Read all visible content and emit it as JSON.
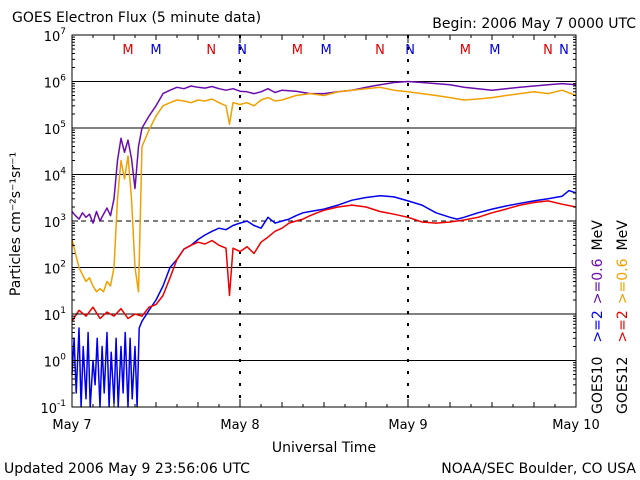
{
  "chart_data": {
    "type": "line",
    "title": "GOES Electron Flux (5 minute data)",
    "begin_label": "Begin: 2006 May 7 0000 UTC",
    "xlabel": "Universal Time",
    "ylabel": "Particles cm⁻²s⁻¹sr⁻¹",
    "yscale": "log",
    "ylim": [
      0.1,
      10000000
    ],
    "y_ticks": [
      {
        "value": 0.1,
        "base": "10",
        "exp": "-1"
      },
      {
        "value": 1,
        "base": "10",
        "exp": "0"
      },
      {
        "value": 10,
        "base": "10",
        "exp": "1"
      },
      {
        "value": 100,
        "base": "10",
        "exp": "2"
      },
      {
        "value": 1000,
        "base": "10",
        "exp": "3"
      },
      {
        "value": 10000,
        "base": "10",
        "exp": "4"
      },
      {
        "value": 100000,
        "base": "10",
        "exp": "5"
      },
      {
        "value": 1000000,
        "base": "10",
        "exp": "6"
      },
      {
        "value": 10000000,
        "base": "10",
        "exp": "7"
      }
    ],
    "xlim": [
      0,
      72
    ],
    "x_ticks": [
      {
        "hour": 0,
        "label": "May 7"
      },
      {
        "hour": 24,
        "label": "May 8"
      },
      {
        "hour": 48,
        "label": "May 9"
      },
      {
        "hour": 72,
        "label": "May 10"
      }
    ],
    "markers": [
      {
        "hour": 8.0,
        "label": "M",
        "color": "#dd0000"
      },
      {
        "hour": 12.0,
        "label": "M",
        "color": "#0000dd"
      },
      {
        "hour": 19.9,
        "label": "N",
        "color": "#dd0000"
      },
      {
        "hour": 24.3,
        "label": "N",
        "color": "#0000dd"
      },
      {
        "hour": 32.2,
        "label": "M",
        "color": "#dd0000"
      },
      {
        "hour": 36.3,
        "label": "M",
        "color": "#0000dd"
      },
      {
        "hour": 44.0,
        "label": "N",
        "color": "#dd0000"
      },
      {
        "hour": 48.3,
        "label": "N",
        "color": "#0000dd"
      },
      {
        "hour": 56.2,
        "label": "M",
        "color": "#dd0000"
      },
      {
        "hour": 60.4,
        "label": "M",
        "color": "#0000dd"
      },
      {
        "hour": 68.0,
        "label": "N",
        "color": "#dd0000"
      },
      {
        "hour": 72.3,
        "label": "N",
        "color": "#0000dd"
      }
    ],
    "dashed_reference": {
      "y": 1000
    },
    "legend": {
      "goes10": "GOES10",
      "goes12": "GOES12",
      "goes10_ge06": ">=0.6",
      "goes10_ge2": ">=2",
      "goes12_ge06": ">=0.6",
      "goes12_ge2": ">=2",
      "unit": "MeV"
    },
    "series": [
      {
        "name": "GOES10 >=0.6 MeV",
        "color": "#6a0dad",
        "points": [
          [
            0,
            1600
          ],
          [
            0.5,
            1300
          ],
          [
            1,
            1100
          ],
          [
            1.5,
            1500
          ],
          [
            2,
            1200
          ],
          [
            2.5,
            1400
          ],
          [
            3,
            900
          ],
          [
            3.5,
            1600
          ],
          [
            4,
            1000
          ],
          [
            4.5,
            1400
          ],
          [
            5,
            1900
          ],
          [
            5.5,
            1300
          ],
          [
            6,
            3000
          ],
          [
            6.5,
            20000
          ],
          [
            7,
            60000
          ],
          [
            7.5,
            30000
          ],
          [
            8,
            55000
          ],
          [
            8.5,
            22000
          ],
          [
            9,
            5000
          ],
          [
            9.5,
            40000
          ],
          [
            10,
            100000
          ],
          [
            11,
            180000
          ],
          [
            12,
            300000
          ],
          [
            13,
            550000
          ],
          [
            14,
            650000
          ],
          [
            15,
            750000
          ],
          [
            16,
            700000
          ],
          [
            17,
            800000
          ],
          [
            18,
            750000
          ],
          [
            19,
            720000
          ],
          [
            20,
            780000
          ],
          [
            21,
            700000
          ],
          [
            22,
            650000
          ],
          [
            23,
            700000
          ],
          [
            24,
            620000
          ],
          [
            25,
            600000
          ],
          [
            26,
            550000
          ],
          [
            27,
            600000
          ],
          [
            28,
            700000
          ],
          [
            29,
            580000
          ],
          [
            30,
            650000
          ],
          [
            32,
            620000
          ],
          [
            34,
            550000
          ],
          [
            36,
            550000
          ],
          [
            38,
            600000
          ],
          [
            40,
            650000
          ],
          [
            42,
            750000
          ],
          [
            44,
            850000
          ],
          [
            46,
            950000
          ],
          [
            48,
            1000000
          ],
          [
            50,
            950000
          ],
          [
            52,
            900000
          ],
          [
            54,
            850000
          ],
          [
            56,
            750000
          ],
          [
            58,
            700000
          ],
          [
            60,
            650000
          ],
          [
            62,
            700000
          ],
          [
            64,
            750000
          ],
          [
            66,
            800000
          ],
          [
            68,
            850000
          ],
          [
            70,
            900000
          ],
          [
            72,
            850000
          ]
        ]
      },
      {
        "name": "GOES12 >=0.6 MeV",
        "color": "#f0a000",
        "points": [
          [
            0,
            400
          ],
          [
            0.5,
            200
          ],
          [
            1,
            100
          ],
          [
            1.5,
            70
          ],
          [
            2,
            50
          ],
          [
            2.5,
            60
          ],
          [
            3,
            40
          ],
          [
            3.5,
            30
          ],
          [
            4,
            35
          ],
          [
            4.5,
            30
          ],
          [
            5,
            50
          ],
          [
            5.5,
            40
          ],
          [
            6,
            100
          ],
          [
            6.5,
            3000
          ],
          [
            7,
            20000
          ],
          [
            7.5,
            8000
          ],
          [
            8,
            25000
          ],
          [
            8.5,
            3000
          ],
          [
            9,
            100
          ],
          [
            9.5,
            30
          ],
          [
            10,
            40000
          ],
          [
            11,
            90000
          ],
          [
            12,
            180000
          ],
          [
            13,
            300000
          ],
          [
            14,
            350000
          ],
          [
            15,
            400000
          ],
          [
            16,
            380000
          ],
          [
            17,
            350000
          ],
          [
            18,
            400000
          ],
          [
            19,
            380000
          ],
          [
            20,
            420000
          ],
          [
            21,
            350000
          ],
          [
            22,
            300000
          ],
          [
            22.5,
            120000
          ],
          [
            23,
            350000
          ],
          [
            24,
            320000
          ],
          [
            25,
            350000
          ],
          [
            26,
            300000
          ],
          [
            27,
            400000
          ],
          [
            28,
            450000
          ],
          [
            29,
            380000
          ],
          [
            30,
            400000
          ],
          [
            32,
            500000
          ],
          [
            34,
            550000
          ],
          [
            36,
            500000
          ],
          [
            38,
            600000
          ],
          [
            40,
            650000
          ],
          [
            42,
            700000
          ],
          [
            44,
            750000
          ],
          [
            46,
            650000
          ],
          [
            48,
            600000
          ],
          [
            50,
            550000
          ],
          [
            52,
            500000
          ],
          [
            54,
            450000
          ],
          [
            56,
            400000
          ],
          [
            58,
            420000
          ],
          [
            60,
            450000
          ],
          [
            62,
            500000
          ],
          [
            64,
            550000
          ],
          [
            66,
            600000
          ],
          [
            68,
            550000
          ],
          [
            70,
            650000
          ],
          [
            72,
            500000
          ]
        ]
      },
      {
        "name": "GOES10 >=2 MeV",
        "color": "#0000ee",
        "points": [
          [
            0,
            0.5
          ],
          [
            0.3,
            3
          ],
          [
            0.6,
            0.2
          ],
          [
            1,
            5
          ],
          [
            1.3,
            0.1
          ],
          [
            1.6,
            2
          ],
          [
            2,
            0.15
          ],
          [
            2.3,
            4
          ],
          [
            2.6,
            0.1
          ],
          [
            3,
            1
          ],
          [
            3.3,
            0.3
          ],
          [
            3.6,
            3
          ],
          [
            4,
            0.1
          ],
          [
            4.3,
            2
          ],
          [
            4.6,
            0.2
          ],
          [
            5,
            4
          ],
          [
            5.3,
            0.1
          ],
          [
            5.6,
            1.5
          ],
          [
            6,
            0.12
          ],
          [
            6.3,
            3
          ],
          [
            6.6,
            0.1
          ],
          [
            7,
            2
          ],
          [
            7.3,
            0.2
          ],
          [
            7.6,
            4
          ],
          [
            8,
            0.1
          ],
          [
            8.3,
            3
          ],
          [
            8.6,
            0.15
          ],
          [
            9,
            2
          ],
          [
            9.3,
            0.1
          ],
          [
            9.6,
            5
          ],
          [
            10,
            7
          ],
          [
            11,
            12
          ],
          [
            12,
            20
          ],
          [
            13,
            40
          ],
          [
            14,
            100
          ],
          [
            15,
            150
          ],
          [
            16,
            250
          ],
          [
            17,
            300
          ],
          [
            18,
            400
          ],
          [
            19,
            500
          ],
          [
            20,
            600
          ],
          [
            21,
            700
          ],
          [
            22,
            650
          ],
          [
            23,
            800
          ],
          [
            24,
            900
          ],
          [
            25,
            1000
          ],
          [
            26,
            800
          ],
          [
            27,
            700
          ],
          [
            28,
            1200
          ],
          [
            29,
            900
          ],
          [
            30,
            1000
          ],
          [
            31,
            1100
          ],
          [
            32,
            1300
          ],
          [
            33,
            1500
          ],
          [
            34,
            1600
          ],
          [
            36,
            1800
          ],
          [
            38,
            2200
          ],
          [
            40,
            2800
          ],
          [
            42,
            3200
          ],
          [
            44,
            3500
          ],
          [
            46,
            3300
          ],
          [
            48,
            2700
          ],
          [
            50,
            2200
          ],
          [
            52,
            1500
          ],
          [
            54,
            1200
          ],
          [
            55,
            1100
          ],
          [
            56,
            1200
          ],
          [
            58,
            1500
          ],
          [
            60,
            1800
          ],
          [
            62,
            2100
          ],
          [
            64,
            2400
          ],
          [
            66,
            2700
          ],
          [
            68,
            3000
          ],
          [
            70,
            3400
          ],
          [
            71,
            4500
          ],
          [
            72,
            4000
          ]
        ]
      },
      {
        "name": "GOES12 >=2 MeV",
        "color": "#ee0000",
        "points": [
          [
            0,
            7
          ],
          [
            1,
            12
          ],
          [
            2,
            9
          ],
          [
            3,
            14
          ],
          [
            4,
            8
          ],
          [
            5,
            11
          ],
          [
            6,
            9
          ],
          [
            7,
            13
          ],
          [
            8,
            8
          ],
          [
            9,
            10
          ],
          [
            10,
            9
          ],
          [
            11,
            14
          ],
          [
            12,
            16
          ],
          [
            13,
            25
          ],
          [
            14,
            60
          ],
          [
            15,
            150
          ],
          [
            16,
            250
          ],
          [
            17,
            300
          ],
          [
            18,
            350
          ],
          [
            19,
            320
          ],
          [
            20,
            380
          ],
          [
            21,
            300
          ],
          [
            22,
            260
          ],
          [
            22.5,
            25
          ],
          [
            23,
            260
          ],
          [
            24,
            220
          ],
          [
            25,
            280
          ],
          [
            26,
            200
          ],
          [
            27,
            350
          ],
          [
            28,
            450
          ],
          [
            29,
            600
          ],
          [
            30,
            700
          ],
          [
            31,
            900
          ],
          [
            32,
            1000
          ],
          [
            33,
            1100
          ],
          [
            34,
            1300
          ],
          [
            35,
            1500
          ],
          [
            36,
            1700
          ],
          [
            38,
            2000
          ],
          [
            40,
            2200
          ],
          [
            42,
            2000
          ],
          [
            44,
            1600
          ],
          [
            46,
            1400
          ],
          [
            48,
            1200
          ],
          [
            50,
            950
          ],
          [
            52,
            900
          ],
          [
            54,
            950
          ],
          [
            56,
            1050
          ],
          [
            58,
            1200
          ],
          [
            60,
            1500
          ],
          [
            62,
            1800
          ],
          [
            64,
            2200
          ],
          [
            66,
            2500
          ],
          [
            68,
            2700
          ],
          [
            70,
            2300
          ],
          [
            72,
            2000
          ]
        ]
      }
    ],
    "annotations": {
      "updated": "Updated 2006 May  9 23:56:06 UTC",
      "source": "NOAA/SEC Boulder, CO USA"
    }
  }
}
